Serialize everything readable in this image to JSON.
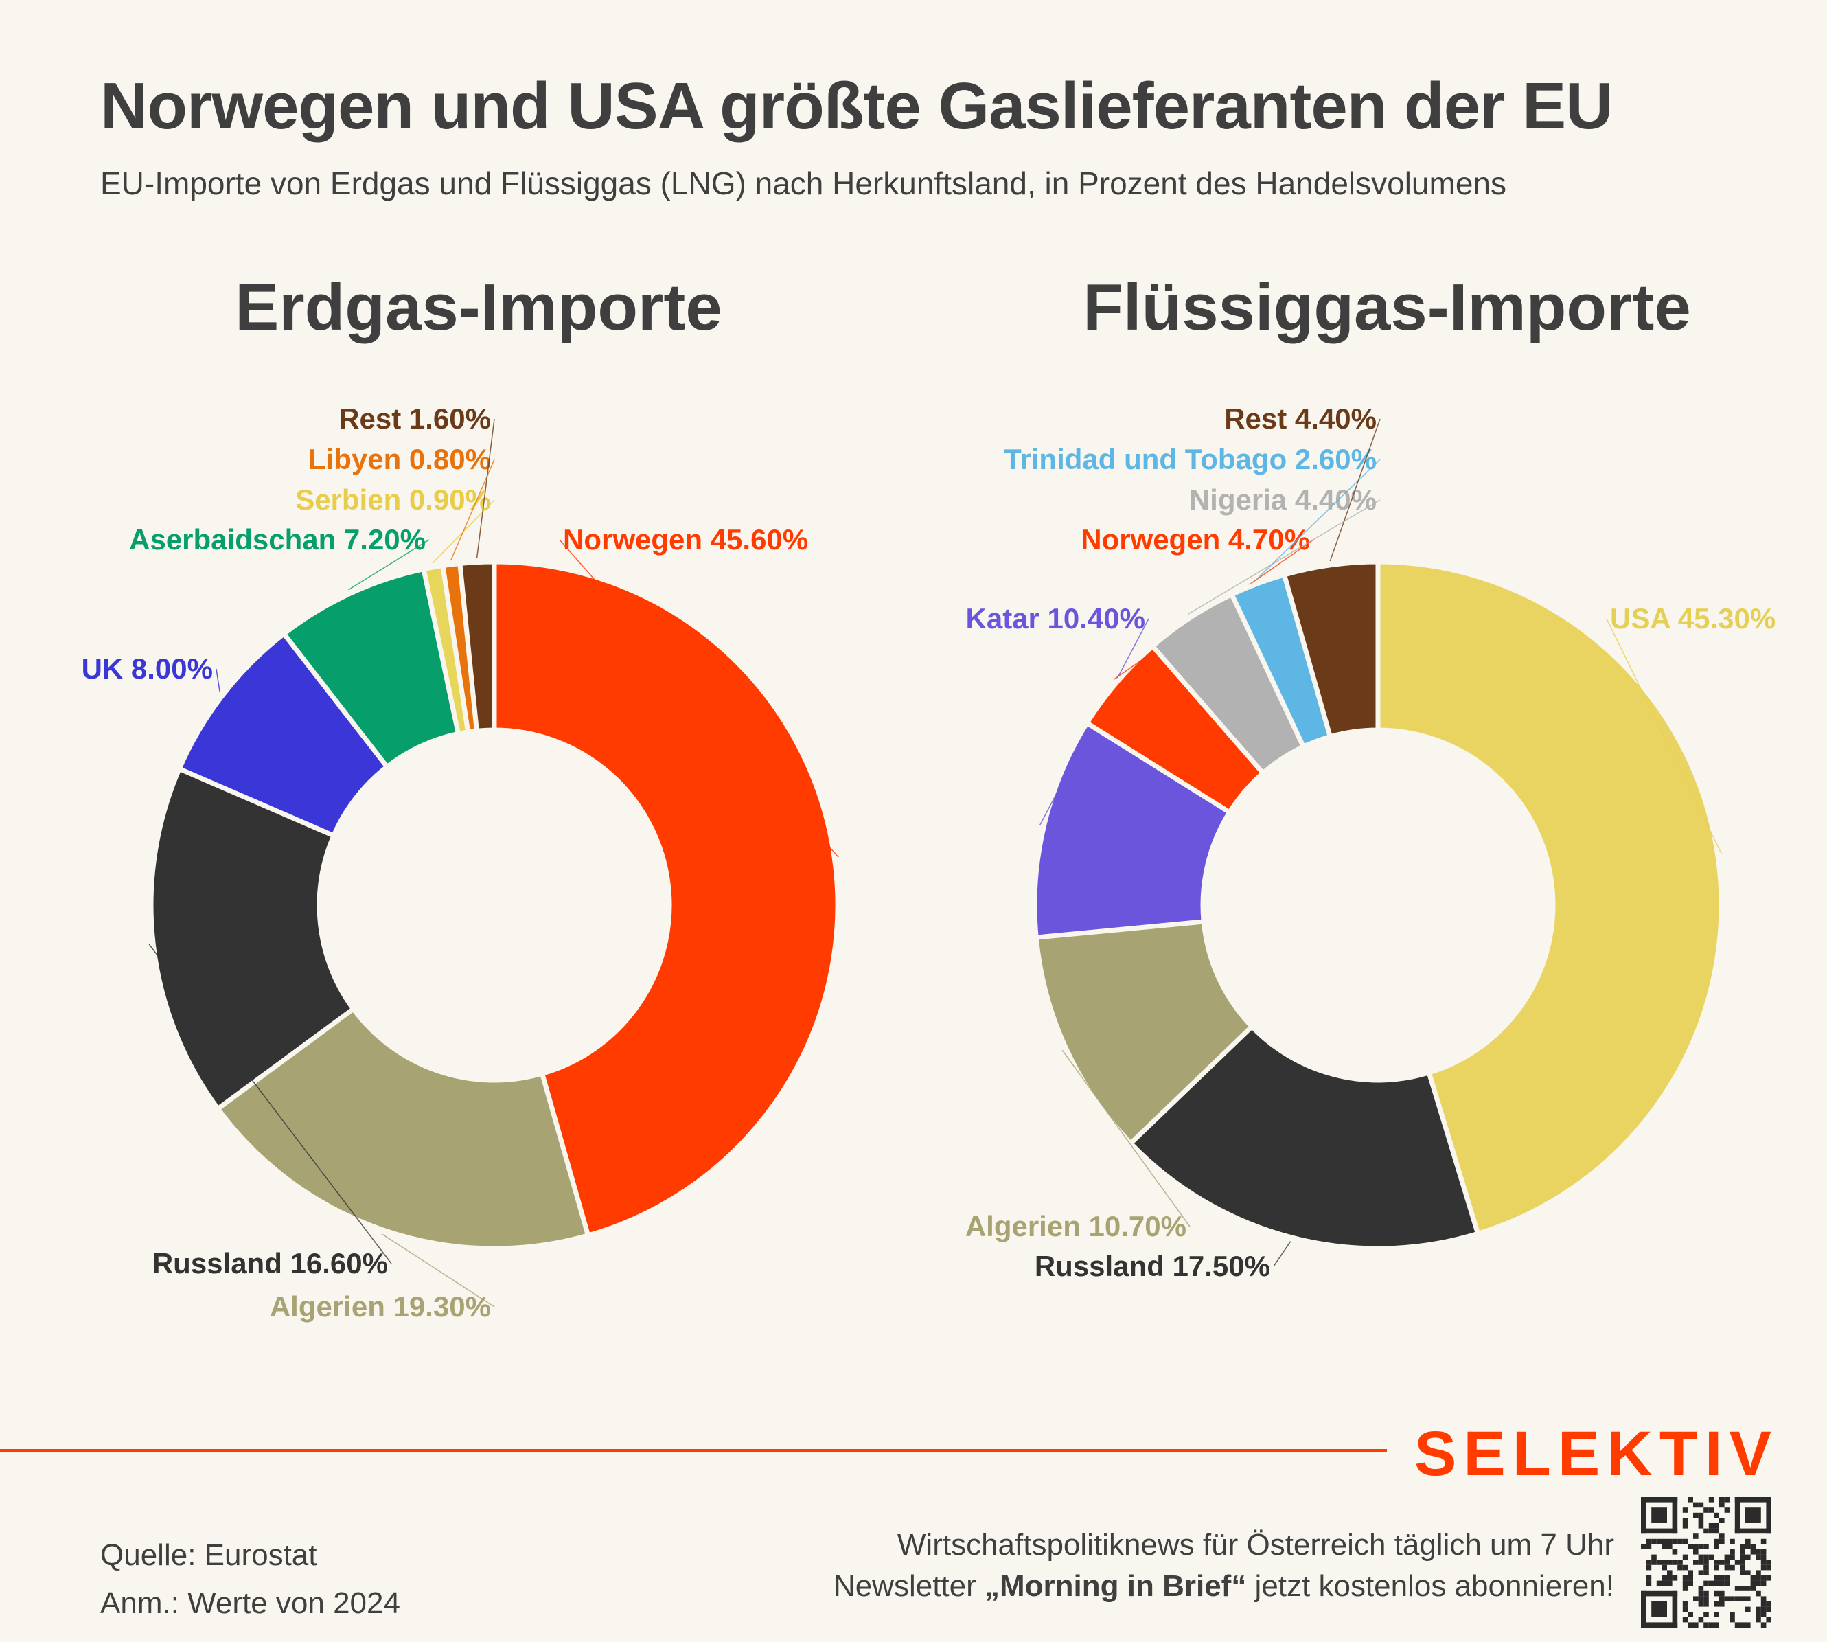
{
  "title": "Norwegen und USA größte Gaslieferanten der EU",
  "subtitle": "EU-Importe von Erdgas und Flüssiggas (LNG) nach Herkunftsland, in Prozent des Handelsvolumens",
  "chart_data": [
    {
      "type": "pie",
      "title": "Erdgas-Importe",
      "categories": [
        "Norwegen",
        "Algerien",
        "Russland",
        "UK",
        "Aserbaidschan",
        "Serbien",
        "Libyen",
        "Rest"
      ],
      "values": [
        45.6,
        19.3,
        16.6,
        8.0,
        7.2,
        0.9,
        0.8,
        1.6
      ],
      "labels": [
        "Norwegen 45.60%",
        "Algerien 19.30%",
        "Russland 16.60%",
        "UK 8.00%",
        "Aserbaidschan 7.20%",
        "Serbien 0.90%",
        "Libyen 0.80%",
        "Rest 1.60%"
      ],
      "colors": [
        "#ff3b00",
        "#a8a373",
        "#333333",
        "#3a36d8",
        "#069e6b",
        "#e8d55c",
        "#e8720c",
        "#6b3a19"
      ],
      "label_colors": [
        "#ff3b00",
        "#a8a373",
        "#333333",
        "#3a36d8",
        "#069e6b",
        "#e8cc4a",
        "#e8720c",
        "#6b3a19"
      ]
    },
    {
      "type": "pie",
      "title": "Flüssiggas-Importe",
      "categories": [
        "USA",
        "Russland",
        "Algerien",
        "Katar",
        "Norwegen",
        "Nigeria",
        "Trinidad und Tobago",
        "Rest"
      ],
      "values": [
        45.3,
        17.5,
        10.7,
        10.4,
        4.7,
        4.4,
        2.6,
        4.4
      ],
      "labels": [
        "USA 45.30%",
        "Russland 17.50%",
        "Algerien 10.70%",
        "Katar 10.40%",
        "Norwegen 4.70%",
        "Nigeria 4.40%",
        "Trinidad und Tobago 2.60%",
        "Rest 4.40%"
      ],
      "colors": [
        "#e9d461",
        "#333333",
        "#a8a373",
        "#6b55dc",
        "#ff3b00",
        "#b3b2b2",
        "#5db6e4",
        "#6b3a19"
      ],
      "label_colors": [
        "#e6cf55",
        "#333333",
        "#a8a373",
        "#6b55dc",
        "#ff3b00",
        "#b3b2b2",
        "#5db6e4",
        "#6b3a19"
      ]
    }
  ],
  "brand": "SELEKTIV",
  "footer": {
    "source": "Quelle: Eurostat",
    "note": "Anm.: Werte von 2024",
    "promo_line1": "Wirtschaftspolitiknews für Österreich täglich um 7 Uhr",
    "promo_line2_pre": "Newsletter ",
    "promo_line2_bold": "„Morning in Brief“",
    "promo_line2_post": " jetzt kostenlos abonnieren!"
  }
}
